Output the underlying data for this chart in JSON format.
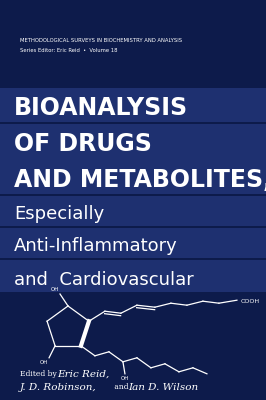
{
  "bg_color": "#0d1b4b",
  "stripe_color": "#1e3070",
  "white": "#ffffff",
  "series_line1": "METHODOLOGICAL SURVEYS IN BIOCHEMISTRY AND ANALYSIS",
  "series_line2": "Series Editor: Eric Reid  •  Volume 18",
  "title_lines": [
    "BIOANALYSIS",
    "OF DRUGS",
    "AND METABOLITES,",
    "Especially",
    "Anti-Inflammatory",
    "and  Cardiovascular"
  ],
  "title_bold": [
    true,
    true,
    true,
    false,
    false,
    false
  ],
  "editors_line1": "Edited by  Eric Reid,",
  "editors_line2": "J. D. Robinson,  and Ian D. Wilson"
}
